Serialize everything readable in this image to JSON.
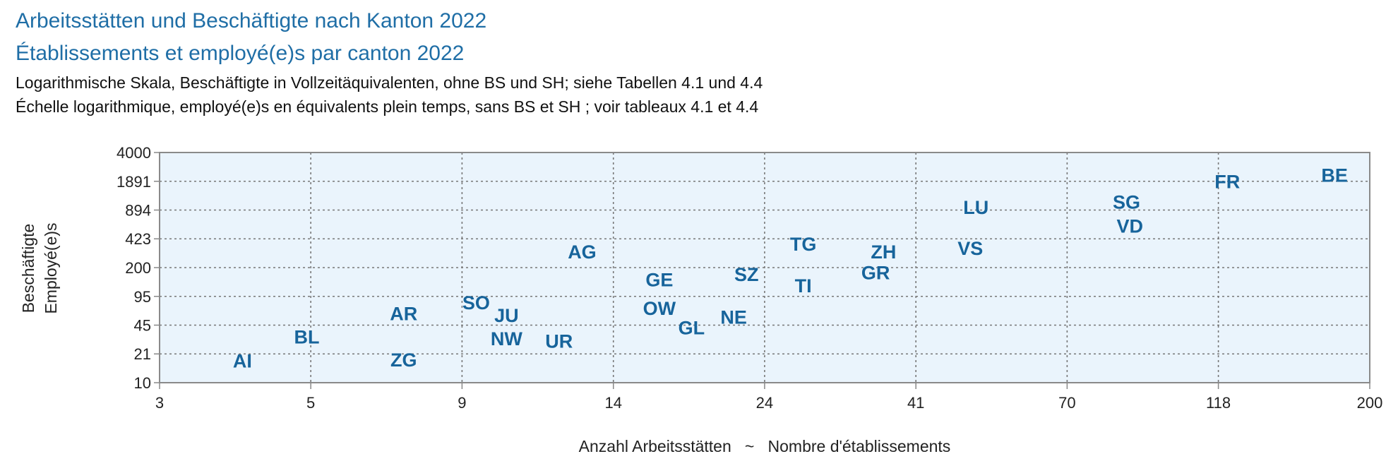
{
  "chart_data": {
    "type": "scatter",
    "title": "Arbeitsstätten und Beschäftigte nach Kanton 2022",
    "title_2": "Établissements et employé(e)s par canton 2022",
    "subtitle": "Logarithmische Skala, Beschäftigte in Vollzeitäquivalenten, ohne BS und SH; siehe Tabellen 4.1 und 4.4",
    "subtitle_2": "Échelle logarithmique, employé(e)s en équivalents plein temps, sans BS et SH ; voir tableaux 4.1 et 4.4",
    "xlabel": "Anzahl Arbeitsstätten   ~   Nombre d'établissements",
    "ylabel": "Beschäftigte",
    "ylabel_2": "Employé(e)s",
    "xlog": true,
    "ylog": true,
    "grid": true,
    "color": "#17649b",
    "labels": [
      "AI",
      "BL",
      "AR",
      "ZG",
      "SO",
      "JU",
      "NW",
      "UR",
      "AG",
      "GE",
      "OW",
      "GL",
      "NE",
      "SZ",
      "TG",
      "TI",
      "ZH",
      "GR",
      "LU",
      "VS",
      "SG",
      "VD",
      "FR",
      "BE"
    ],
    "x": [
      4.0,
      5.0,
      7.0,
      7.0,
      9.0,
      10.0,
      10.0,
      12.0,
      13.0,
      17.0,
      17.0,
      19.0,
      22.0,
      23.0,
      28.0,
      28.0,
      37.0,
      36.0,
      51.0,
      50.0,
      86.0,
      87.0,
      122.0,
      177.0
    ],
    "y": [
      17.9,
      33.4,
      61.2,
      18.3,
      80.9,
      58.5,
      31.9,
      29.8,
      304.0,
      148.0,
      70.3,
      42.2,
      55.7,
      170.0,
      374.0,
      126.0,
      304.0,
      178.0,
      970.0,
      334.0,
      1114.0,
      596.0,
      1900.0,
      2240.0
    ],
    "xlim": [
      3,
      200
    ],
    "ylim": [
      10,
      4000
    ],
    "xticks": [
      3,
      {
        "value": 5.07,
        "label": "5"
      },
      {
        "value": 8.57,
        "label": "9"
      },
      {
        "value": 14.49,
        "label": "14"
      },
      {
        "value": 24.49,
        "label": "24"
      },
      {
        "value": 41.4,
        "label": "41"
      },
      {
        "value": 69.97,
        "label": "70"
      },
      {
        "value": 118.27,
        "label": "118"
      },
      200
    ],
    "yticks": [
      10,
      {
        "value": 21.15,
        "label": "21"
      },
      {
        "value": 44.72,
        "label": "45"
      },
      {
        "value": 94.57,
        "label": "95"
      },
      200,
      {
        "value": 422.95,
        "label": "423"
      },
      {
        "value": 894.43,
        "label": "894"
      },
      {
        "value": 1891.4,
        "label": "1891"
      },
      4000
    ]
  }
}
